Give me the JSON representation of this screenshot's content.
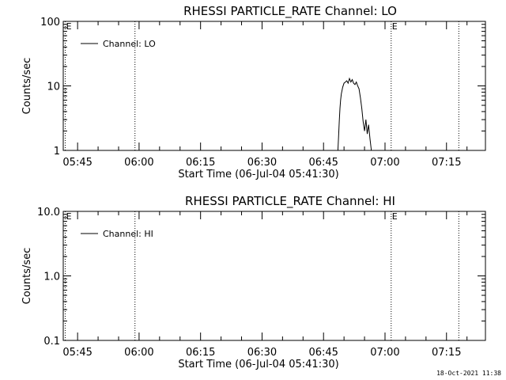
{
  "chart_data": [
    {
      "type": "line",
      "title": "RHESSI PARTICLE_RATE Channel: LO",
      "xlabel": "Start Time (06-Jul-04 05:41:30)",
      "ylabel": "Counts/sec",
      "yscale": "log",
      "ylim": [
        1,
        100
      ],
      "xlim": [
        "05:41:30",
        "07:24:30"
      ],
      "x_tick_labels": [
        "05:45",
        "06:00",
        "06:15",
        "06:30",
        "06:45",
        "07:00",
        "07:15"
      ],
      "y_tick_labels": [
        "1",
        "10",
        "100"
      ],
      "legend": {
        "position": "top-left",
        "entries": [
          "Channel: LO"
        ]
      },
      "markers": [
        {
          "time": "05:42:00",
          "label": "E"
        },
        {
          "time": "05:59:00",
          "label": ""
        },
        {
          "time": "07:01:30",
          "label": "E"
        },
        {
          "time": "07:18:00",
          "label": ""
        }
      ],
      "series": [
        {
          "name": "Channel: LO",
          "x": [
            "06:48:30",
            "06:48:40",
            "06:48:50",
            "06:49:00",
            "06:49:10",
            "06:49:20",
            "06:49:40",
            "06:50:00",
            "06:50:20",
            "06:50:40",
            "06:51:00",
            "06:51:20",
            "06:51:40",
            "06:52:00",
            "06:52:20",
            "06:52:40",
            "06:53:00",
            "06:53:20",
            "06:53:40",
            "06:54:00",
            "06:54:20",
            "06:54:40",
            "06:55:00",
            "06:55:20",
            "06:55:40",
            "06:56:00",
            "06:56:20",
            "06:56:40"
          ],
          "y": [
            1.0,
            1.6,
            2.8,
            4.5,
            6.0,
            7.5,
            9.5,
            11.0,
            11.5,
            12.0,
            11.0,
            13.0,
            11.5,
            12.5,
            11.0,
            10.5,
            11.5,
            10.0,
            9.0,
            6.5,
            4.5,
            2.8,
            2.0,
            3.0,
            1.8,
            2.5,
            1.5,
            1.0
          ]
        }
      ]
    },
    {
      "type": "line",
      "title": "RHESSI PARTICLE_RATE Channel: HI",
      "xlabel": "Start Time (06-Jul-04 05:41:30)",
      "ylabel": "Counts/sec",
      "yscale": "log",
      "ylim": [
        0.1,
        10
      ],
      "xlim": [
        "05:41:30",
        "07:24:30"
      ],
      "x_tick_labels": [
        "05:45",
        "06:00",
        "06:15",
        "06:30",
        "06:45",
        "07:00",
        "07:15"
      ],
      "y_tick_labels": [
        "0.1",
        "1.0",
        "10.0"
      ],
      "legend": {
        "position": "top-left",
        "entries": [
          "Channel: HI"
        ]
      },
      "markers": [
        {
          "time": "05:42:00",
          "label": "E"
        },
        {
          "time": "05:59:00",
          "label": ""
        },
        {
          "time": "07:01:30",
          "label": "E"
        },
        {
          "time": "07:18:00",
          "label": ""
        }
      ],
      "series": [
        {
          "name": "Channel: HI",
          "x": [],
          "y": []
        }
      ]
    }
  ],
  "footer": {
    "timestamp": "18-Oct-2021 11:38"
  }
}
